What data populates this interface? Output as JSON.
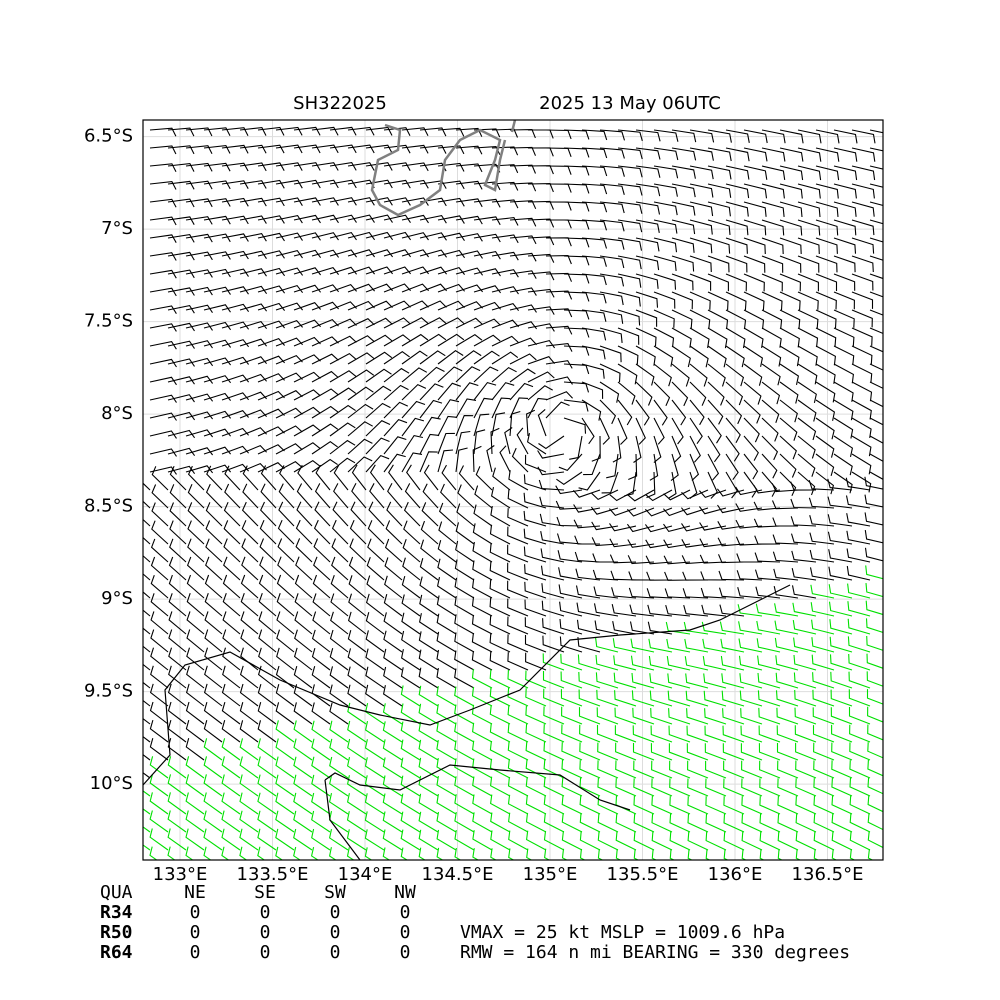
{
  "map": {
    "title_left": "SH322025",
    "title_right": "2025 13 May 06UTC",
    "xlim": [
      132.8,
      136.8
    ],
    "ylim": [
      -6.41,
      -10.41
    ],
    "xticks": [
      {
        "value": 133,
        "label": "133°E"
      },
      {
        "value": 133.5,
        "label": "133.5°E"
      },
      {
        "value": 134,
        "label": "134°E"
      },
      {
        "value": 134.5,
        "label": "134.5°E"
      },
      {
        "value": 135,
        "label": "135°E"
      },
      {
        "value": 135.5,
        "label": "135.5°E"
      },
      {
        "value": 136,
        "label": "136°E"
      },
      {
        "value": 136.5,
        "label": "136.5°E"
      }
    ],
    "yticks": [
      {
        "value": -6.5,
        "label": "6.5°S"
      },
      {
        "value": -7,
        "label": "7°S"
      },
      {
        "value": -7.5,
        "label": "7.5°S"
      },
      {
        "value": -8,
        "label": "8°S"
      },
      {
        "value": -8.5,
        "label": "8.5°S"
      },
      {
        "value": -9,
        "label": "9°S"
      },
      {
        "value": -9.5,
        "label": "9.5°S"
      },
      {
        "value": -10,
        "label": "10°S"
      }
    ],
    "grid": true
  },
  "table": {
    "header": [
      "QUA",
      "NE",
      "SE",
      "SW",
      "NW"
    ],
    "rows": [
      [
        "R34",
        "0",
        "0",
        "0",
        "0"
      ],
      [
        "R50",
        "0",
        "0",
        "0",
        "0"
      ],
      [
        "R64",
        "0",
        "0",
        "0",
        "0"
      ]
    ]
  },
  "info": [
    "VMAX =  25 kt MSLP = 1009.6 hPa",
    "RMW = 164 n mi BEARING = 330 degrees"
  ]
}
